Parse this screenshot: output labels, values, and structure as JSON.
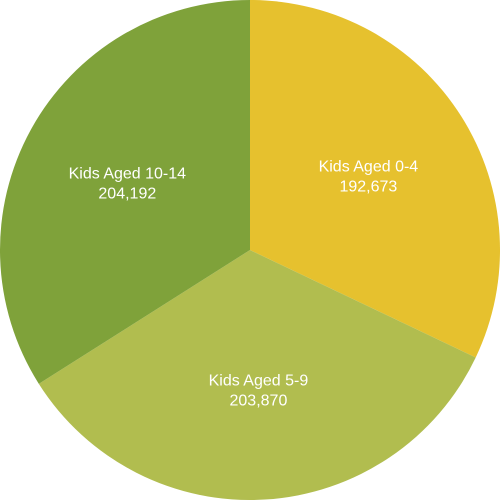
{
  "chart_data": {
    "type": "pie",
    "title": "",
    "slices": [
      {
        "label": "Kids Aged 0-4",
        "value": 192673,
        "display_value": "192,673",
        "color": "#E6C12E"
      },
      {
        "label": "Kids Aged 5-9",
        "value": 203870,
        "display_value": "203,870",
        "color": "#B1BD4F"
      },
      {
        "label": "Kids Aged 10-14",
        "value": 204192,
        "display_value": "204,192",
        "color": "#7FA23A"
      }
    ],
    "start_angle_deg": 0,
    "direction": "clockwise",
    "legend": "none"
  }
}
